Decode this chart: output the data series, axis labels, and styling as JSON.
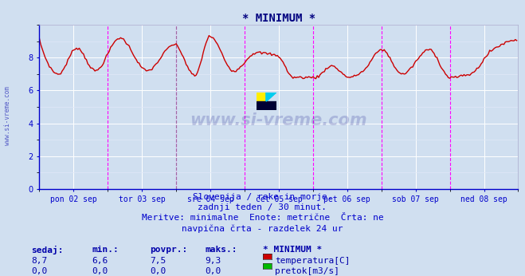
{
  "title": "* MINIMUM *",
  "title_color": "#000080",
  "title_fontsize": 10,
  "bg_color": "#d0dff0",
  "plot_bg_color": "#d0dff0",
  "line_color": "#cc0000",
  "line_width": 1.0,
  "ylim": [
    0,
    10.0
  ],
  "yticks": [
    0,
    2,
    4,
    6,
    8
  ],
  "ylabel_color": "#0000cc",
  "xlabel_color": "#0000cc",
  "grid_major_color": "#ffffff",
  "grid_minor_color": "#e0e8f8",
  "vline_color_magenta": "#ff00ff",
  "vline_color_gray": "#888888",
  "x_labels": [
    "pon 02 sep",
    "tor 03 sep",
    "sre 04 sep",
    "čet 05 sep",
    "pet 06 sep",
    "sob 07 sep",
    "ned 08 sep"
  ],
  "subtitle_lines": [
    "Slovenija / reke in morje.",
    "zadnji teden / 30 minut.",
    "Meritve: minimalne  Enote: metrične  Črta: ne",
    "navpična črta - razdelek 24 ur"
  ],
  "subtitle_color": "#0000cc",
  "subtitle_fontsize": 8,
  "table_headers": [
    "sedaj:",
    "min.:",
    "povpr.:",
    "maks.:",
    "* MINIMUM *"
  ],
  "table_row1": [
    "8,7",
    "6,6",
    "7,5",
    "9,3",
    "temperatura[C]"
  ],
  "table_row2": [
    "0,0",
    "0,0",
    "0,0",
    "0,0",
    "pretok[m3/s]"
  ],
  "table_color": "#0000aa",
  "table_fontsize": 8,
  "legend_color_temp": "#cc0000",
  "legend_color_pretok": "#00bb00",
  "watermark_text": "www.si-vreme.com",
  "watermark_color": "#000080",
  "watermark_alpha": 0.18,
  "side_text": "www.si-vreme.com",
  "side_color": "#0000aa",
  "n_points": 336,
  "temp_min": 6.6,
  "temp_max": 9.3,
  "temp_mean": 7.5
}
